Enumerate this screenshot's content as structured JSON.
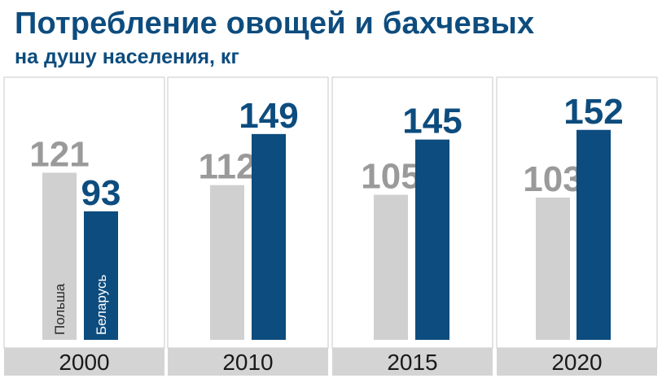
{
  "header": {
    "title": "Потребление овощей и бахчевых",
    "subtitle": "на душу населения, кг"
  },
  "colors": {
    "poland": "#d0d0d0",
    "poland_label": "#9a9a9a",
    "belarus": "#0d4c7e"
  },
  "chart_data": {
    "type": "bar",
    "title": "Потребление овощей и бахчевых",
    "subtitle": "на душу населения, кг",
    "categories": [
      "2000",
      "2010",
      "2015",
      "2020"
    ],
    "series": [
      {
        "name": "Польша",
        "values": [
          121,
          112,
          105,
          103
        ]
      },
      {
        "name": "Беларусь",
        "values": [
          93,
          149,
          145,
          152
        ]
      }
    ],
    "ylim": [
      0,
      152
    ],
    "grid": false,
    "legend": "series names printed vertically inside the first pair of bars"
  }
}
